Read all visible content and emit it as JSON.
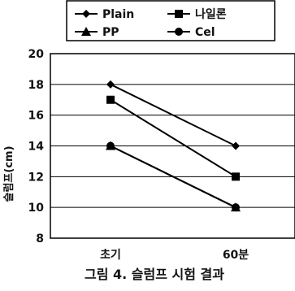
{
  "chart_data": {
    "type": "line",
    "title": "그림 4. 슬럼프 시험 결과",
    "xlabel": "",
    "ylabel": "슬럼프(cm)",
    "categories": [
      "초기",
      "60분"
    ],
    "ylim": [
      8,
      20
    ],
    "yticks": [
      8,
      10,
      12,
      14,
      16,
      18,
      20
    ],
    "grid": true,
    "legend_position": "top",
    "series": [
      {
        "name": "Plain",
        "marker": "diamond",
        "values": [
          18,
          14
        ],
        "color": "#000000"
      },
      {
        "name": "나일론",
        "marker": "square",
        "values": [
          17,
          12
        ],
        "color": "#000000"
      },
      {
        "name": "PP",
        "marker": "triangle",
        "values": [
          14,
          10
        ],
        "color": "#000000"
      },
      {
        "name": "Cel",
        "marker": "circle",
        "values": [
          14,
          10
        ],
        "color": "#000000"
      }
    ]
  }
}
